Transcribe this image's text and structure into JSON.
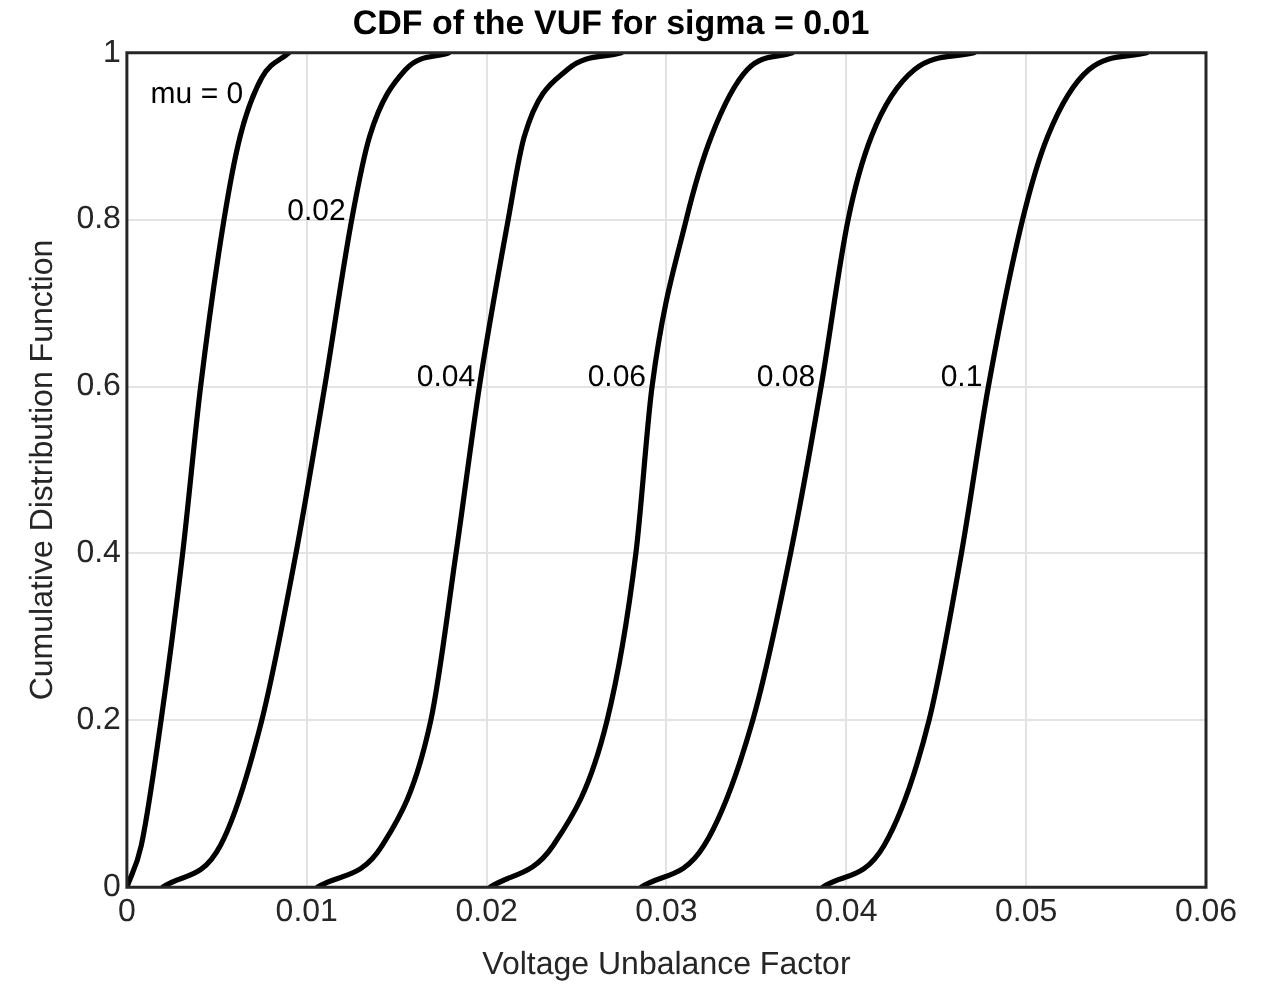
{
  "chart_data": {
    "type": "line",
    "title": "CDF of the VUF for sigma = 0.01",
    "xlabel": "Voltage Unbalance Factor",
    "ylabel": "Cumulative Distribution Function",
    "xlim": [
      0,
      0.06
    ],
    "xticks": [
      0,
      0.01,
      0.02,
      0.03,
      0.04,
      0.05,
      0.06
    ],
    "ylim": [
      0,
      1
    ],
    "yticks": [
      0,
      0.2,
      0.4,
      0.6,
      0.8,
      1
    ],
    "grid": true,
    "marker": "none",
    "line_style": "solid",
    "series": [
      {
        "color": "#000000",
        "x": [
          0,
          0.0008,
          0.0019,
          0.0031,
          0.0041,
          0.0054,
          0.0063,
          0.0075,
          0.009
        ],
        "values": [
          0,
          0.05,
          0.2,
          0.4,
          0.6,
          0.8,
          0.9,
          0.97,
          1
        ]
      },
      {
        "color": "#000000",
        "x": [
          0.002,
          0.0052,
          0.0075,
          0.0094,
          0.011,
          0.0125,
          0.0135,
          0.0155,
          0.0179
        ],
        "values": [
          0,
          0.05,
          0.2,
          0.4,
          0.6,
          0.8,
          0.9,
          0.98,
          1
        ]
      },
      {
        "color": "#000000",
        "x": [
          0.0106,
          0.0142,
          0.0169,
          0.0183,
          0.0196,
          0.0212,
          0.0221,
          0.0245,
          0.0275
        ],
        "values": [
          0,
          0.05,
          0.2,
          0.4,
          0.6,
          0.8,
          0.9,
          0.98,
          1
        ]
      },
      {
        "color": "#000000",
        "x": [
          0.0202,
          0.0237,
          0.0267,
          0.0283,
          0.0292,
          0.0311,
          0.0325,
          0.0345,
          0.037
        ],
        "values": [
          0,
          0.05,
          0.2,
          0.4,
          0.6,
          0.8,
          0.9,
          0.98,
          1
        ]
      },
      {
        "color": "#000000",
        "x": [
          0.0286,
          0.0321,
          0.0348,
          0.0369,
          0.0386,
          0.0401,
          0.0414,
          0.0438,
          0.0471
        ],
        "values": [
          0,
          0.05,
          0.2,
          0.4,
          0.6,
          0.8,
          0.9,
          0.98,
          1
        ]
      },
      {
        "color": "#000000",
        "x": [
          0.0387,
          0.0421,
          0.0446,
          0.0464,
          0.0479,
          0.0498,
          0.0512,
          0.0535,
          0.0567
        ],
        "values": [
          0,
          0.05,
          0.2,
          0.4,
          0.6,
          0.8,
          0.9,
          0.98,
          1
        ]
      }
    ],
    "annotations": [
      {
        "text": "mu = 0",
        "x": 0.0068,
        "y": 0.95
      },
      {
        "text": "0.02",
        "x": 0.0125,
        "y": 0.81
      },
      {
        "text": "0.04",
        "x": 0.0197,
        "y": 0.61
      },
      {
        "text": "0.06",
        "x": 0.0292,
        "y": 0.61
      },
      {
        "text": "0.08",
        "x": 0.0386,
        "y": 0.61
      },
      {
        "text": "0.1",
        "x": 0.0479,
        "y": 0.61
      }
    ]
  }
}
